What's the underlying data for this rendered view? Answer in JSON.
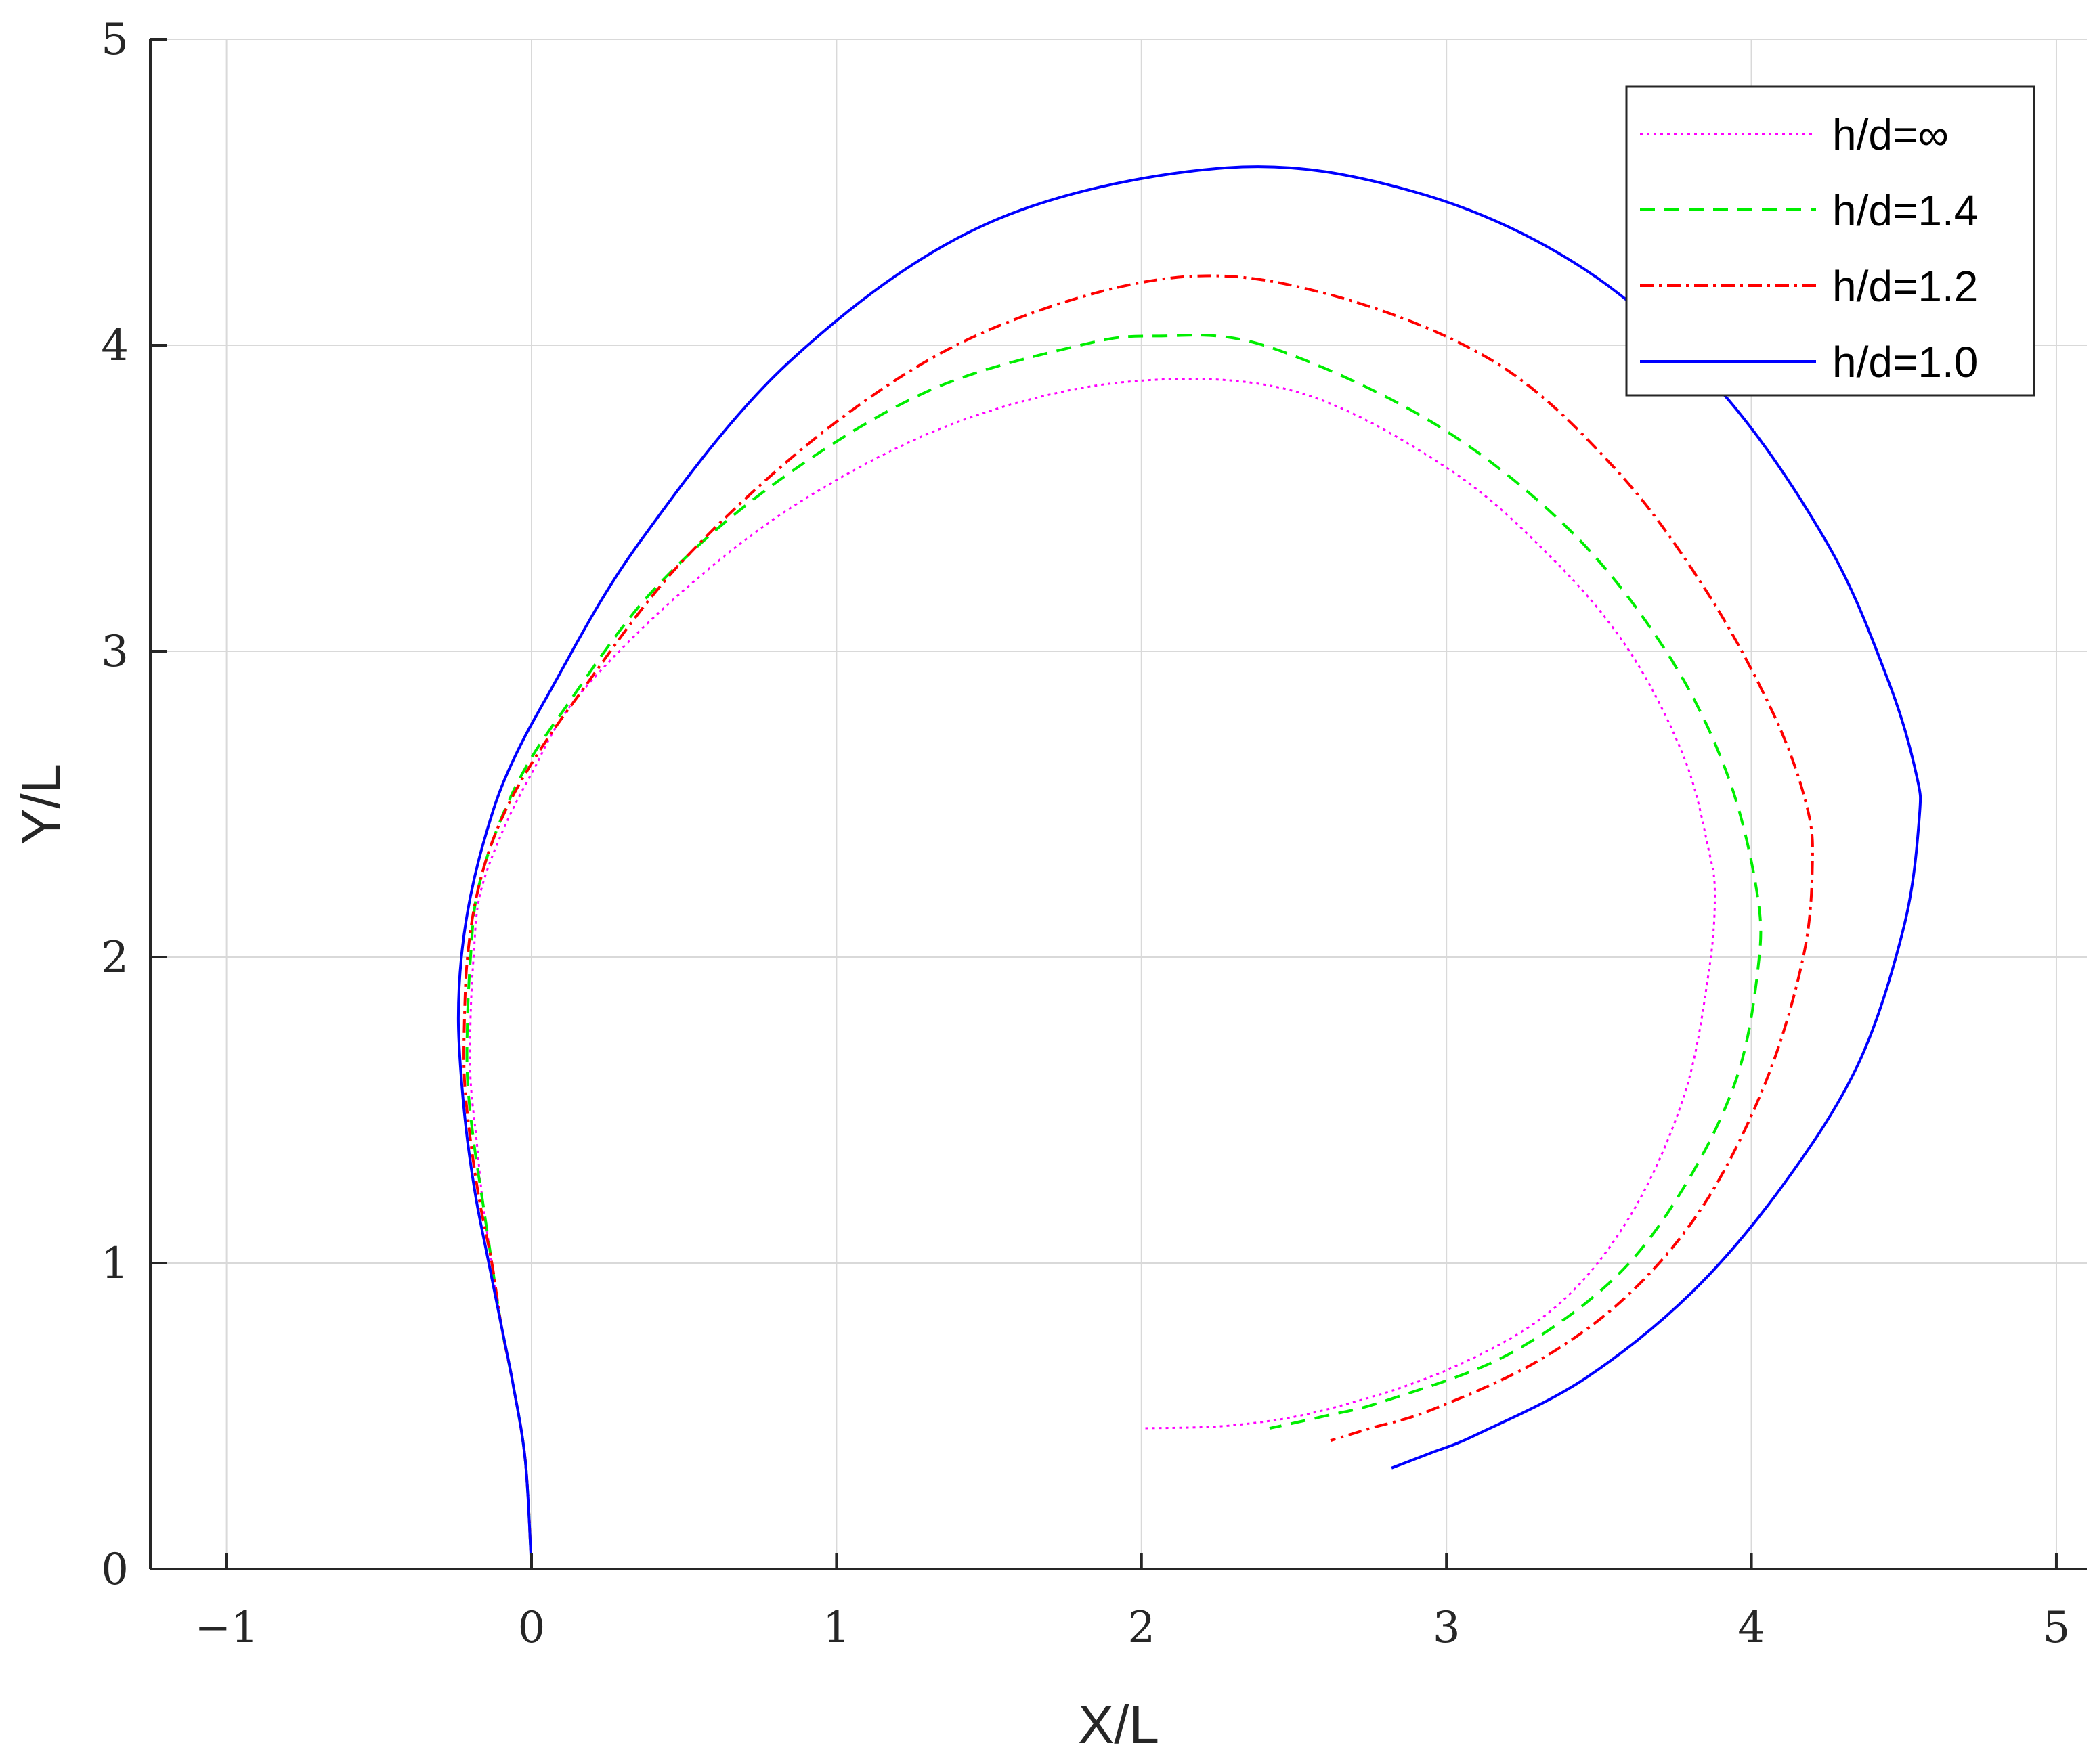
{
  "chart_data": {
    "type": "line",
    "xlabel": "X/L",
    "ylabel": "Y/L",
    "xlim": [
      -1.25,
      5.1
    ],
    "ylim": [
      0,
      5
    ],
    "xticks": [
      -1,
      0,
      1,
      2,
      3,
      4,
      5
    ],
    "yticks": [
      0,
      1,
      2,
      3,
      4,
      5
    ],
    "xtick_labels": [
      "−1",
      "0",
      "1",
      "2",
      "3",
      "4",
      "5"
    ],
    "ytick_labels": [
      "0",
      "1",
      "2",
      "3",
      "4",
      "5"
    ],
    "grid": true,
    "legend_position": "top-right",
    "series": [
      {
        "name": "h/d=∞",
        "color": "#ff00ff",
        "dash": "dotted",
        "x": [
          0.0,
          -0.02,
          -0.06,
          -0.1,
          -0.13,
          -0.16,
          -0.18,
          -0.2,
          -0.2,
          -0.19,
          -0.17,
          -0.1,
          0.0,
          0.15,
          0.5,
          0.9,
          1.4,
          1.95,
          2.5,
          3.0,
          3.35,
          3.6,
          3.78,
          3.86,
          3.88,
          3.86,
          3.78,
          3.6,
          3.35,
          3.0,
          2.6,
          2.3,
          2.0
        ],
        "y": [
          0.0,
          0.35,
          0.6,
          0.8,
          1.0,
          1.2,
          1.4,
          1.6,
          1.8,
          2.0,
          2.2,
          2.4,
          2.6,
          2.85,
          3.2,
          3.5,
          3.75,
          3.88,
          3.85,
          3.6,
          3.3,
          3.0,
          2.65,
          2.35,
          2.2,
          1.95,
          1.55,
          1.15,
          0.85,
          0.65,
          0.52,
          0.47,
          0.46
        ]
      },
      {
        "name": "h/d=1.4",
        "color": "#00ee00",
        "dash": "dashed",
        "x": [
          0.0,
          -0.02,
          -0.06,
          -0.1,
          -0.13,
          -0.16,
          -0.19,
          -0.21,
          -0.21,
          -0.2,
          -0.18,
          -0.12,
          -0.03,
          0.1,
          0.4,
          0.8,
          1.3,
          1.8,
          2.05,
          2.4,
          2.95,
          3.4,
          3.72,
          3.92,
          4.02,
          4.02,
          3.95,
          3.78,
          3.55,
          3.2,
          2.8,
          2.6,
          2.42
        ],
        "y": [
          0.0,
          0.35,
          0.6,
          0.8,
          1.0,
          1.2,
          1.4,
          1.6,
          1.8,
          2.0,
          2.2,
          2.4,
          2.6,
          2.8,
          3.2,
          3.55,
          3.85,
          4.0,
          4.03,
          4.0,
          3.75,
          3.4,
          3.0,
          2.6,
          2.2,
          1.95,
          1.6,
          1.25,
          0.95,
          0.7,
          0.55,
          0.5,
          0.46
        ]
      },
      {
        "name": "h/d=1.2",
        "color": "#ff0000",
        "dash": "dashdot",
        "x": [
          0.0,
          -0.02,
          -0.06,
          -0.1,
          -0.13,
          -0.17,
          -0.2,
          -0.22,
          -0.22,
          -0.21,
          -0.18,
          -0.12,
          -0.02,
          0.15,
          0.5,
          1.0,
          1.5,
          2.1,
          2.6,
          3.15,
          3.55,
          3.85,
          4.07,
          4.18,
          4.2,
          4.17,
          4.05,
          3.85,
          3.6,
          3.3,
          2.95,
          2.75,
          2.62
        ],
        "y": [
          0.0,
          0.35,
          0.6,
          0.8,
          1.0,
          1.2,
          1.4,
          1.6,
          1.8,
          2.0,
          2.2,
          2.4,
          2.6,
          2.85,
          3.3,
          3.75,
          4.05,
          4.22,
          4.17,
          3.95,
          3.6,
          3.2,
          2.8,
          2.5,
          2.3,
          2.0,
          1.6,
          1.2,
          0.9,
          0.68,
          0.52,
          0.46,
          0.42
        ]
      },
      {
        "name": "h/d=1.0",
        "color": "#0000ff",
        "dash": "solid",
        "x": [
          0.0,
          -0.02,
          -0.06,
          -0.1,
          -0.14,
          -0.18,
          -0.21,
          -0.23,
          -0.24,
          -0.23,
          -0.2,
          -0.15,
          -0.08,
          0.05,
          0.35,
          0.85,
          1.5,
          2.28,
          2.9,
          3.45,
          3.9,
          4.25,
          4.45,
          4.54,
          4.55,
          4.5,
          4.35,
          4.1,
          3.8,
          3.45,
          3.1,
          2.95,
          2.82
        ],
        "y": [
          0.0,
          0.35,
          0.6,
          0.8,
          1.0,
          1.2,
          1.4,
          1.6,
          1.8,
          2.0,
          2.2,
          2.4,
          2.6,
          2.85,
          3.35,
          3.95,
          4.4,
          4.58,
          4.5,
          4.25,
          3.85,
          3.35,
          2.9,
          2.6,
          2.45,
          2.1,
          1.65,
          1.25,
          0.9,
          0.62,
          0.44,
          0.38,
          0.33
        ]
      }
    ]
  }
}
